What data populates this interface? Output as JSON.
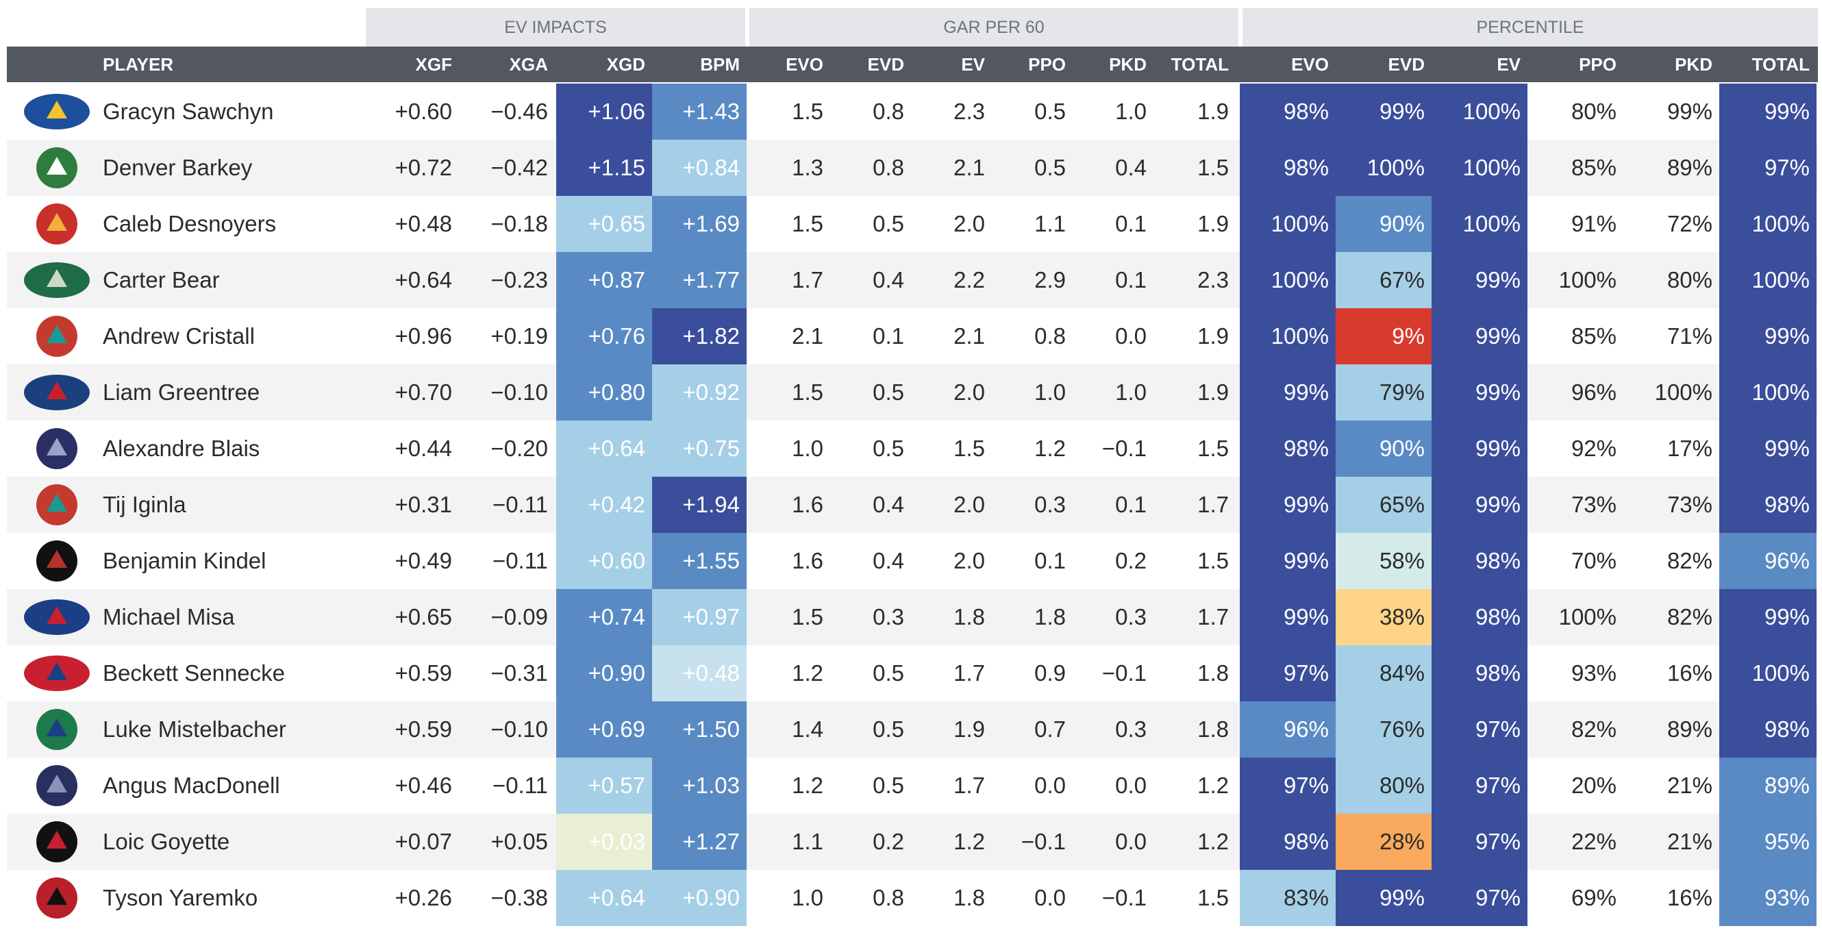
{
  "chart_data": {
    "type": "table",
    "groups": [
      {
        "label": "EV IMPACTS",
        "columns": [
          "XGA",
          "XGD",
          "BPM"
        ]
      },
      {
        "label": "GAR PER 60",
        "columns": [
          "EVO",
          "EVD",
          "EV",
          "PPO",
          "PKD",
          "TOTAL"
        ]
      },
      {
        "label": "PERCENTILE",
        "columns": [
          "EVO",
          "EVD",
          "EV",
          "PPO",
          "PKD",
          "TOTAL"
        ]
      }
    ],
    "headers": [
      "PLAYER",
      "XGF",
      "XGA",
      "XGD",
      "BPM",
      "EVO",
      "EVD",
      "EV",
      "PPO",
      "PKD",
      "TOTAL",
      "EVO",
      "EVD",
      "EV",
      "PPO",
      "PKD",
      "TOTAL"
    ],
    "rows": [
      {
        "team_logo": "oil-kings-logo",
        "player": "Gracyn Sawchyn",
        "xgf": "+0.60",
        "xga": "−0.46",
        "xgd": "+1.06",
        "bpm": "+1.43",
        "gar": [
          "1.5",
          "0.8",
          "2.3",
          "0.5",
          "1.0",
          "1.9"
        ],
        "pct": [
          "98%",
          "99%",
          "100%",
          "80%",
          "99%",
          "99%"
        ]
      },
      {
        "team_logo": "goalie-mask-logo",
        "player": "Denver Barkey",
        "xgf": "+0.72",
        "xga": "−0.42",
        "xgd": "+1.15",
        "bpm": "+0.84",
        "gar": [
          "1.3",
          "0.8",
          "2.1",
          "0.5",
          "0.4",
          "1.5"
        ],
        "pct": [
          "98%",
          "100%",
          "100%",
          "85%",
          "89%",
          "97%"
        ]
      },
      {
        "team_logo": "tiger-logo",
        "player": "Caleb Desnoyers",
        "xgf": "+0.48",
        "xga": "−0.18",
        "xgd": "+0.65",
        "bpm": "+1.69",
        "gar": [
          "1.5",
          "0.5",
          "2.0",
          "1.1",
          "0.1",
          "1.9"
        ],
        "pct": [
          "100%",
          "90%",
          "100%",
          "91%",
          "72%",
          "100%"
        ]
      },
      {
        "team_logo": "silvertips-logo",
        "player": "Carter Bear",
        "xgf": "+0.64",
        "xga": "−0.23",
        "xgd": "+0.87",
        "bpm": "+1.77",
        "gar": [
          "1.7",
          "0.4",
          "2.2",
          "2.9",
          "0.1",
          "2.3"
        ],
        "pct": [
          "100%",
          "67%",
          "99%",
          "100%",
          "80%",
          "100%"
        ]
      },
      {
        "team_logo": "hitmen-logo",
        "player": "Andrew Cristall",
        "xgf": "+0.96",
        "xga": "+0.19",
        "xgd": "+0.76",
        "bpm": "+1.82",
        "gar": [
          "2.1",
          "0.1",
          "2.1",
          "0.8",
          "0.0",
          "1.9"
        ],
        "pct": [
          "100%",
          "9%",
          "99%",
          "85%",
          "71%",
          "99%"
        ]
      },
      {
        "team_logo": "spitfires-logo",
        "player": "Liam Greentree",
        "xgf": "+0.70",
        "xga": "−0.10",
        "xgd": "+0.80",
        "bpm": "+0.92",
        "gar": [
          "1.5",
          "0.5",
          "2.0",
          "1.0",
          "1.0",
          "1.9"
        ],
        "pct": [
          "99%",
          "79%",
          "99%",
          "96%",
          "100%",
          "100%"
        ]
      },
      {
        "team_logo": "wolf-logo",
        "player": "Alexandre Blais",
        "xgf": "+0.44",
        "xga": "−0.20",
        "xgd": "+0.64",
        "bpm": "+0.75",
        "gar": [
          "1.0",
          "0.5",
          "1.5",
          "1.2",
          "−0.1",
          "1.5"
        ],
        "pct": [
          "98%",
          "90%",
          "99%",
          "92%",
          "17%",
          "99%"
        ]
      },
      {
        "team_logo": "hitmen-logo",
        "player": "Tij Iginla",
        "xgf": "+0.31",
        "xga": "−0.11",
        "xgd": "+0.42",
        "bpm": "+1.94",
        "gar": [
          "1.6",
          "0.4",
          "2.0",
          "0.3",
          "0.1",
          "1.7"
        ],
        "pct": [
          "99%",
          "65%",
          "99%",
          "73%",
          "73%",
          "98%"
        ]
      },
      {
        "team_logo": "giants-logo",
        "player": "Benjamin Kindel",
        "xgf": "+0.49",
        "xga": "−0.11",
        "xgd": "+0.60",
        "bpm": "+1.55",
        "gar": [
          "1.6",
          "0.4",
          "2.0",
          "0.1",
          "0.2",
          "1.5"
        ],
        "pct": [
          "99%",
          "58%",
          "98%",
          "70%",
          "82%",
          "96%"
        ]
      },
      {
        "team_logo": "saginaw-spirit-logo",
        "player": "Michael Misa",
        "xgf": "+0.65",
        "xga": "−0.09",
        "xgd": "+0.74",
        "bpm": "+0.97",
        "gar": [
          "1.5",
          "0.3",
          "1.8",
          "1.8",
          "0.3",
          "1.7"
        ],
        "pct": [
          "99%",
          "38%",
          "98%",
          "100%",
          "82%",
          "99%"
        ]
      },
      {
        "team_logo": "oshawa-generals-logo",
        "player": "Beckett Sennecke",
        "xgf": "+0.59",
        "xga": "−0.31",
        "xgd": "+0.90",
        "bpm": "+0.48",
        "gar": [
          "1.2",
          "0.5",
          "1.7",
          "0.9",
          "−0.1",
          "1.8"
        ],
        "pct": [
          "97%",
          "84%",
          "98%",
          "93%",
          "16%",
          "100%"
        ]
      },
      {
        "team_logo": "broncos-logo",
        "player": "Luke Mistelbacher",
        "xgf": "+0.59",
        "xga": "−0.10",
        "xgd": "+0.69",
        "bpm": "+1.50",
        "gar": [
          "1.4",
          "0.5",
          "1.9",
          "0.7",
          "0.3",
          "1.8"
        ],
        "pct": [
          "96%",
          "76%",
          "97%",
          "82%",
          "89%",
          "98%"
        ]
      },
      {
        "team_logo": "storm-logo",
        "player": "Angus MacDonell",
        "xgf": "+0.46",
        "xga": "−0.11",
        "xgd": "+0.57",
        "bpm": "+1.03",
        "gar": [
          "1.2",
          "0.5",
          "1.7",
          "0.0",
          "0.0",
          "1.2"
        ],
        "pct": [
          "97%",
          "80%",
          "97%",
          "20%",
          "21%",
          "89%"
        ]
      },
      {
        "team_logo": "remparts-logo",
        "player": "Loic Goyette",
        "xgf": "+0.07",
        "xga": "+0.05",
        "xgd": "+0.03",
        "bpm": "+1.27",
        "gar": [
          "1.1",
          "0.2",
          "1.2",
          "−0.1",
          "0.0",
          "1.2"
        ],
        "pct": [
          "98%",
          "28%",
          "97%",
          "22%",
          "21%",
          "95%"
        ]
      },
      {
        "team_logo": "eagle-logo",
        "player": "Tyson Yaremko",
        "xgf": "+0.26",
        "xga": "−0.38",
        "xgd": "+0.64",
        "bpm": "+0.90",
        "gar": [
          "1.0",
          "0.8",
          "1.8",
          "0.0",
          "−0.1",
          "1.5"
        ],
        "pct": [
          "83%",
          "99%",
          "97%",
          "69%",
          "16%",
          "93%"
        ]
      }
    ]
  },
  "colors": {
    "header_bar": "#53575f",
    "group_header_bg": "#e5e6ea",
    "row_shade": "#f3f3f4",
    "scale_dark": "#3a4e9c",
    "scale_mid": "#5a8ac4",
    "scale_light": "#a5cfe6",
    "scale_pale": "#e9efd5",
    "scale_yellow": "#fdd488",
    "scale_orange": "#f9a95e",
    "scale_red": "#d93a2e"
  }
}
